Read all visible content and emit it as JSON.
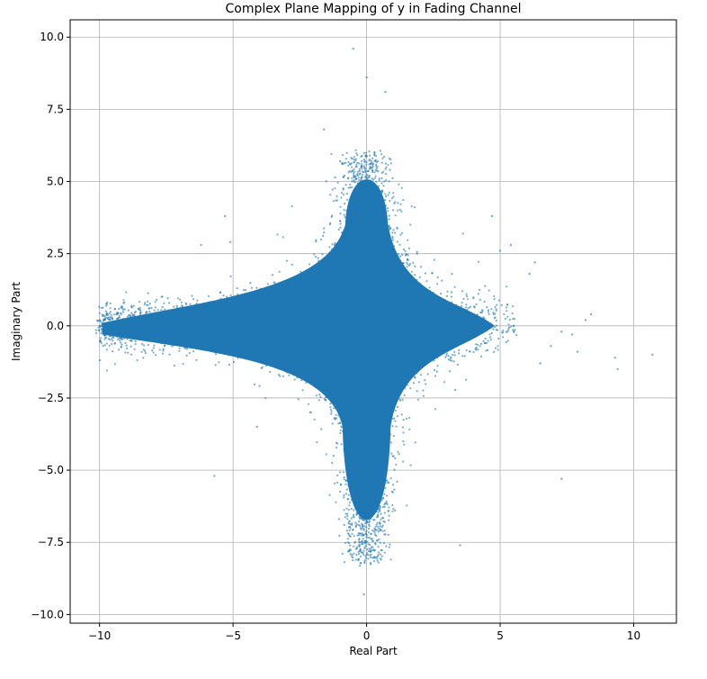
{
  "chart_data": {
    "type": "scatter",
    "title": "Complex Plane Mapping of y in Fading Channel",
    "xlabel": "Real Part",
    "ylabel": "Imaginary Part",
    "xlim": [
      -11.1,
      11.6
    ],
    "ylim": [
      -10.3,
      10.6
    ],
    "grid": true,
    "color": "#1f77b4",
    "x_ticks": [
      -10,
      -5,
      0,
      5,
      10
    ],
    "x_tick_labels": [
      "−10",
      "−5",
      "0",
      "5",
      "10"
    ],
    "y_ticks": [
      10.0,
      7.5,
      5.0,
      2.5,
      0.0,
      -2.5,
      -5.0,
      -7.5,
      -10.0
    ],
    "y_tick_labels": [
      "10.0",
      "7.5",
      "5.0",
      "2.5",
      "0.0",
      "−2.5",
      "−5.0",
      "−7.5",
      "−10.0"
    ],
    "density": {
      "description_cloud": "dense star-shaped cloud centered at origin",
      "horizontal_arm_x": [
        -10.0,
        5.0
      ],
      "vertical_arm_y": [
        -8.2,
        6.0
      ]
    },
    "outliers": [
      [
        10.7,
        -1.0
      ],
      [
        9.4,
        -1.5
      ],
      [
        9.3,
        -1.1
      ],
      [
        8.4,
        0.4
      ],
      [
        8.2,
        0.2
      ],
      [
        7.9,
        -0.9
      ],
      [
        7.7,
        -0.3
      ],
      [
        7.3,
        -5.3
      ],
      [
        7.3,
        -0.2
      ],
      [
        6.9,
        -0.7
      ],
      [
        6.5,
        -1.3
      ],
      [
        6.3,
        2.2
      ],
      [
        6.1,
        1.8
      ],
      [
        5.4,
        2.8
      ],
      [
        5.0,
        2.6
      ],
      [
        4.7,
        3.8
      ],
      [
        3.5,
        -7.6
      ],
      [
        -0.1,
        -9.3
      ],
      [
        0.0,
        8.6
      ],
      [
        -0.5,
        9.6
      ],
      [
        0.7,
        8.1
      ],
      [
        -5.7,
        -5.2
      ],
      [
        -5.3,
        3.8
      ],
      [
        -5.1,
        2.9
      ],
      [
        -6.2,
        2.8
      ],
      [
        -1.6,
        6.8
      ],
      [
        -4.1,
        -3.5
      ],
      [
        -9.9,
        0.1
      ]
    ]
  }
}
